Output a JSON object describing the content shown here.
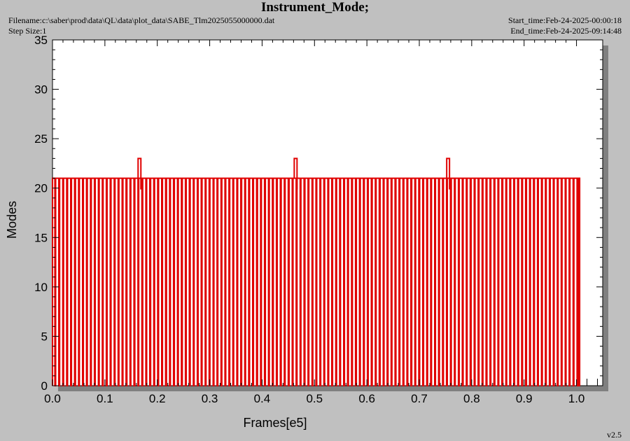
{
  "header": {
    "title": "Instrument_Mode;",
    "filename": "Filename:c:\\saber\\prod\\data\\QL\\data\\plot_data\\SABE_Tlm2025055000000.dat",
    "step_size": "Step Size:1",
    "start_time": "Start_time:Feb-24-2025-00:00:18",
    "end_time": "End_time:Feb-24-2025-09:14:48"
  },
  "footer": {
    "version": "v2.5"
  },
  "colors": {
    "series": "#e00000",
    "plot_bg": "#ffffff",
    "frame_bg": "#c0c0c0",
    "shadow": "#808080"
  },
  "chart_data": {
    "type": "line",
    "xlabel": "Frames[e5]",
    "ylabel": "Modes",
    "xlim": [
      0.0,
      1.05
    ],
    "ylim": [
      0,
      35
    ],
    "xticks": [
      "0.0",
      "0.1",
      "0.2",
      "0.3",
      "0.4",
      "0.5",
      "0.6",
      "0.7",
      "0.8",
      "0.9",
      "1.0"
    ],
    "yticks": [
      "0",
      "5",
      "10",
      "15",
      "20",
      "25",
      "30",
      "35"
    ],
    "grid": false,
    "series": [
      {
        "x_start": 0.0,
        "x_end": 1.006,
        "baseline_mode": 21,
        "low_mode": 0,
        "pulse_period": 0.00755,
        "peak_mode": 23,
        "peaks_x": [
          0.166,
          0.464,
          0.755
        ]
      }
    ],
    "isolated_points": [
      {
        "x": 1.02,
        "y": 0
      },
      {
        "x": 1.04,
        "y": 0
      }
    ]
  }
}
